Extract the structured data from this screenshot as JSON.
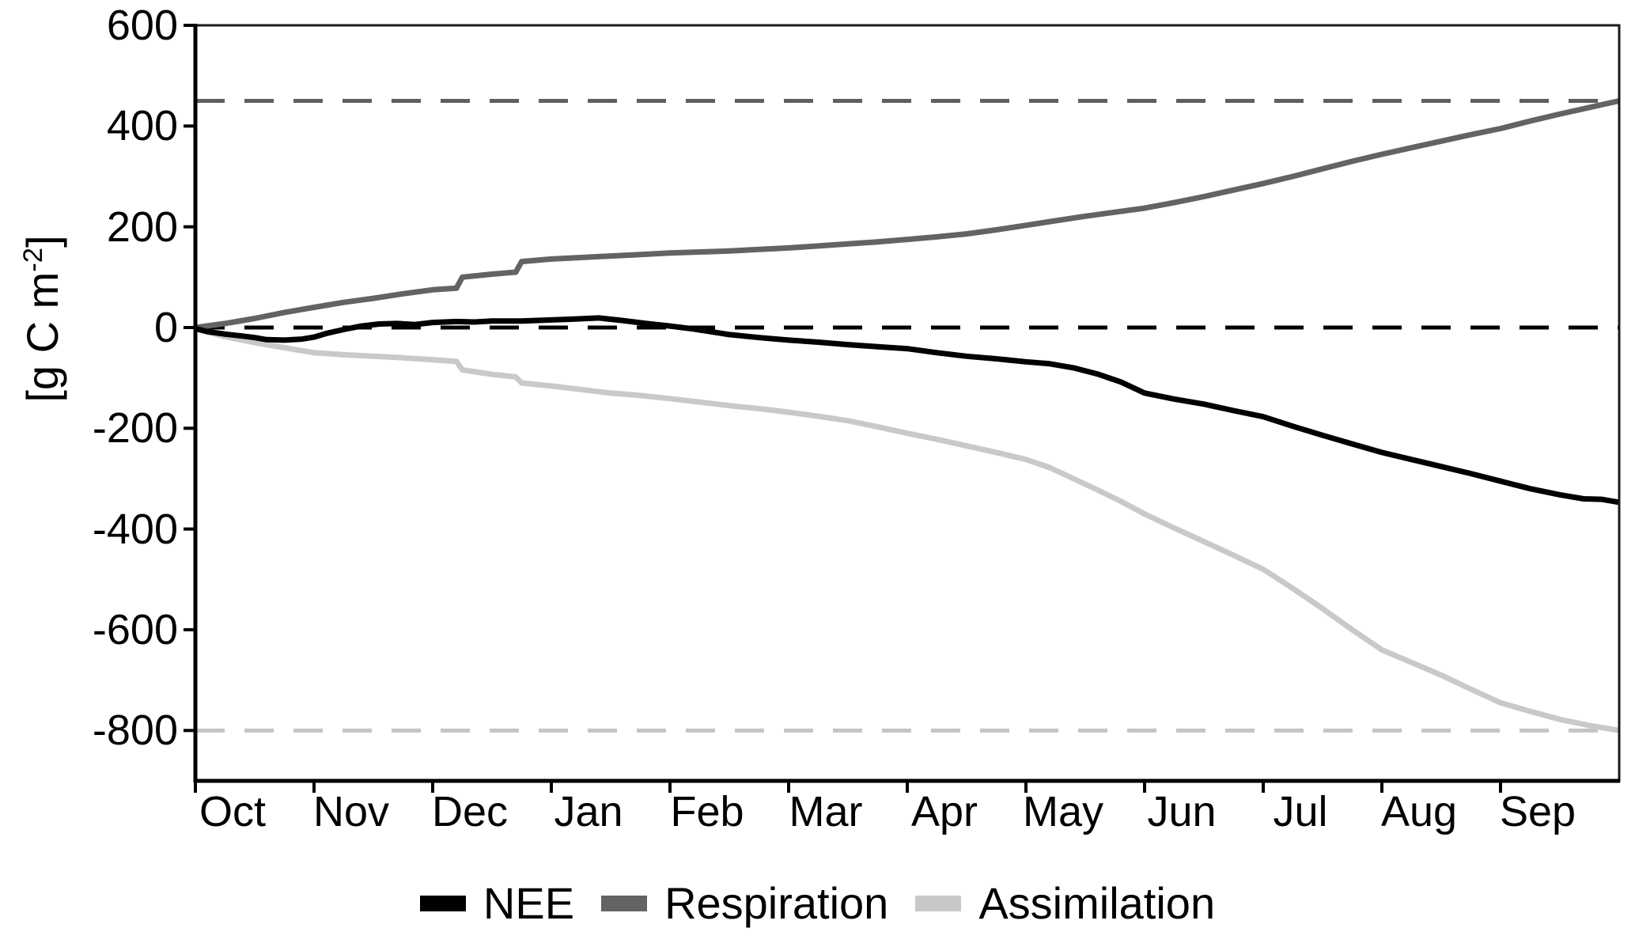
{
  "figure": {
    "y_axis_title": {
      "prefix": "[g C m",
      "sup": "-2",
      "suffix": "]"
    },
    "y_tick_labels": [
      "600",
      "400",
      "200",
      "0",
      "-200",
      "-400",
      "-600",
      "-800"
    ],
    "x_tick_labels": [
      "Oct",
      "Nov",
      "Dec",
      "Jan",
      "Feb",
      "Mar",
      "Apr",
      "May",
      "Jun",
      "Jul",
      "Aug",
      "Sep"
    ]
  },
  "legend": {
    "items": [
      {
        "label": "NEE",
        "color": "#000000"
      },
      {
        "label": "Respiration",
        "color": "#636363"
      },
      {
        "label": "Assimilation",
        "color": "#c9c9c9"
      }
    ]
  },
  "chart_data": {
    "type": "line",
    "title": "",
    "xlabel": "",
    "ylabel": "[g C m-2]",
    "x_unit": "months since Oct 1 (Oct through Sep, one year)",
    "x_tick_labels": [
      "Oct",
      "Nov",
      "Dec",
      "Jan",
      "Feb",
      "Mar",
      "Apr",
      "May",
      "Jun",
      "Jul",
      "Aug",
      "Sep"
    ],
    "xlim": [
      0,
      12
    ],
    "ylim": [
      -900,
      600
    ],
    "y_ticks": [
      600,
      400,
      200,
      0,
      -200,
      -400,
      -600,
      -800
    ],
    "grid": false,
    "legend_position": "bottom-center",
    "panel_border": true,
    "axis_color": "#000000",
    "reference_lines": [
      {
        "y": 450,
        "color": "#5f5f5f",
        "style": "dashed"
      },
      {
        "y": 0,
        "color": "#000000",
        "style": "dashed"
      },
      {
        "y": -800,
        "color": "#c4c4c4",
        "style": "dashed"
      }
    ],
    "series": [
      {
        "name": "NEE",
        "color": "#000000",
        "points": [
          [
            0,
            -2
          ],
          [
            0.1,
            -8
          ],
          [
            0.25,
            -13
          ],
          [
            0.4,
            -17
          ],
          [
            0.5,
            -20
          ],
          [
            0.6,
            -24
          ],
          [
            0.75,
            -25
          ],
          [
            0.9,
            -23
          ],
          [
            1,
            -19
          ],
          [
            1.1,
            -12
          ],
          [
            1.25,
            -4
          ],
          [
            1.4,
            3
          ],
          [
            1.55,
            7
          ],
          [
            1.7,
            8
          ],
          [
            1.85,
            6
          ],
          [
            2,
            10
          ],
          [
            2.2,
            12
          ],
          [
            2.35,
            11
          ],
          [
            2.5,
            13
          ],
          [
            2.75,
            13
          ],
          [
            3,
            15
          ],
          [
            3.2,
            17
          ],
          [
            3.4,
            19
          ],
          [
            3.6,
            14
          ],
          [
            3.8,
            8
          ],
          [
            4,
            3
          ],
          [
            4.2,
            -3
          ],
          [
            4.5,
            -14
          ],
          [
            4.75,
            -20
          ],
          [
            5,
            -25
          ],
          [
            5.25,
            -29
          ],
          [
            5.5,
            -34
          ],
          [
            5.75,
            -38
          ],
          [
            6,
            -42
          ],
          [
            6.25,
            -50
          ],
          [
            6.5,
            -57
          ],
          [
            6.75,
            -62
          ],
          [
            7,
            -68
          ],
          [
            7.2,
            -72
          ],
          [
            7.4,
            -80
          ],
          [
            7.6,
            -92
          ],
          [
            7.8,
            -108
          ],
          [
            8,
            -130
          ],
          [
            8.25,
            -142
          ],
          [
            8.5,
            -152
          ],
          [
            8.75,
            -165
          ],
          [
            9,
            -177
          ],
          [
            9.25,
            -196
          ],
          [
            9.5,
            -214
          ],
          [
            9.75,
            -231
          ],
          [
            10,
            -248
          ],
          [
            10.25,
            -262
          ],
          [
            10.5,
            -276
          ],
          [
            10.75,
            -290
          ],
          [
            11,
            -305
          ],
          [
            11.25,
            -320
          ],
          [
            11.5,
            -332
          ],
          [
            11.7,
            -340
          ],
          [
            11.85,
            -341
          ],
          [
            12,
            -347
          ]
        ]
      },
      {
        "name": "Respiration",
        "color": "#636363",
        "points": [
          [
            0,
            0
          ],
          [
            0.25,
            8
          ],
          [
            0.5,
            18
          ],
          [
            0.75,
            30
          ],
          [
            1,
            40
          ],
          [
            1.25,
            50
          ],
          [
            1.5,
            58
          ],
          [
            1.75,
            67
          ],
          [
            2,
            75
          ],
          [
            2.2,
            78
          ],
          [
            2.25,
            100
          ],
          [
            2.5,
            106
          ],
          [
            2.7,
            110
          ],
          [
            2.75,
            131
          ],
          [
            3,
            136
          ],
          [
            3.25,
            139
          ],
          [
            3.5,
            142
          ],
          [
            3.75,
            145
          ],
          [
            4,
            148
          ],
          [
            4.25,
            150
          ],
          [
            4.5,
            152
          ],
          [
            4.75,
            155
          ],
          [
            5,
            158
          ],
          [
            5.25,
            162
          ],
          [
            5.5,
            166
          ],
          [
            5.75,
            170
          ],
          [
            6,
            175
          ],
          [
            6.25,
            180
          ],
          [
            6.5,
            186
          ],
          [
            6.75,
            194
          ],
          [
            7,
            203
          ],
          [
            7.25,
            212
          ],
          [
            7.5,
            221
          ],
          [
            7.75,
            229
          ],
          [
            8,
            237
          ],
          [
            8.25,
            248
          ],
          [
            8.5,
            260
          ],
          [
            8.75,
            273
          ],
          [
            9,
            286
          ],
          [
            9.25,
            300
          ],
          [
            9.5,
            315
          ],
          [
            9.75,
            330
          ],
          [
            10,
            344
          ],
          [
            10.25,
            357
          ],
          [
            10.5,
            370
          ],
          [
            10.75,
            383
          ],
          [
            11,
            395
          ],
          [
            11.25,
            410
          ],
          [
            11.5,
            424
          ],
          [
            11.75,
            437
          ],
          [
            12,
            450
          ]
        ]
      },
      {
        "name": "Assimilation",
        "color": "#c9c9c9",
        "points": [
          [
            0,
            -3
          ],
          [
            0.15,
            -12
          ],
          [
            0.25,
            -18
          ],
          [
            0.5,
            -30
          ],
          [
            0.75,
            -40
          ],
          [
            1,
            -50
          ],
          [
            1.25,
            -54
          ],
          [
            1.5,
            -57
          ],
          [
            1.75,
            -60
          ],
          [
            2,
            -64
          ],
          [
            2.2,
            -67
          ],
          [
            2.25,
            -84
          ],
          [
            2.5,
            -93
          ],
          [
            2.7,
            -98
          ],
          [
            2.75,
            -110
          ],
          [
            3,
            -116
          ],
          [
            3.25,
            -123
          ],
          [
            3.5,
            -130
          ],
          [
            3.75,
            -135
          ],
          [
            4,
            -141
          ],
          [
            4.25,
            -148
          ],
          [
            4.5,
            -155
          ],
          [
            4.75,
            -161
          ],
          [
            5,
            -168
          ],
          [
            5.25,
            -176
          ],
          [
            5.5,
            -185
          ],
          [
            5.75,
            -197
          ],
          [
            6,
            -210
          ],
          [
            6.25,
            -222
          ],
          [
            6.5,
            -235
          ],
          [
            6.75,
            -248
          ],
          [
            7,
            -262
          ],
          [
            7.2,
            -278
          ],
          [
            7.4,
            -300
          ],
          [
            7.6,
            -322
          ],
          [
            7.8,
            -345
          ],
          [
            8,
            -370
          ],
          [
            8.25,
            -398
          ],
          [
            8.5,
            -425
          ],
          [
            8.75,
            -452
          ],
          [
            9,
            -480
          ],
          [
            9.25,
            -518
          ],
          [
            9.5,
            -558
          ],
          [
            9.75,
            -600
          ],
          [
            10,
            -640
          ],
          [
            10.25,
            -665
          ],
          [
            10.5,
            -690
          ],
          [
            10.75,
            -718
          ],
          [
            11,
            -745
          ],
          [
            11.25,
            -762
          ],
          [
            11.5,
            -778
          ],
          [
            11.75,
            -790
          ],
          [
            12,
            -800
          ]
        ]
      }
    ]
  }
}
